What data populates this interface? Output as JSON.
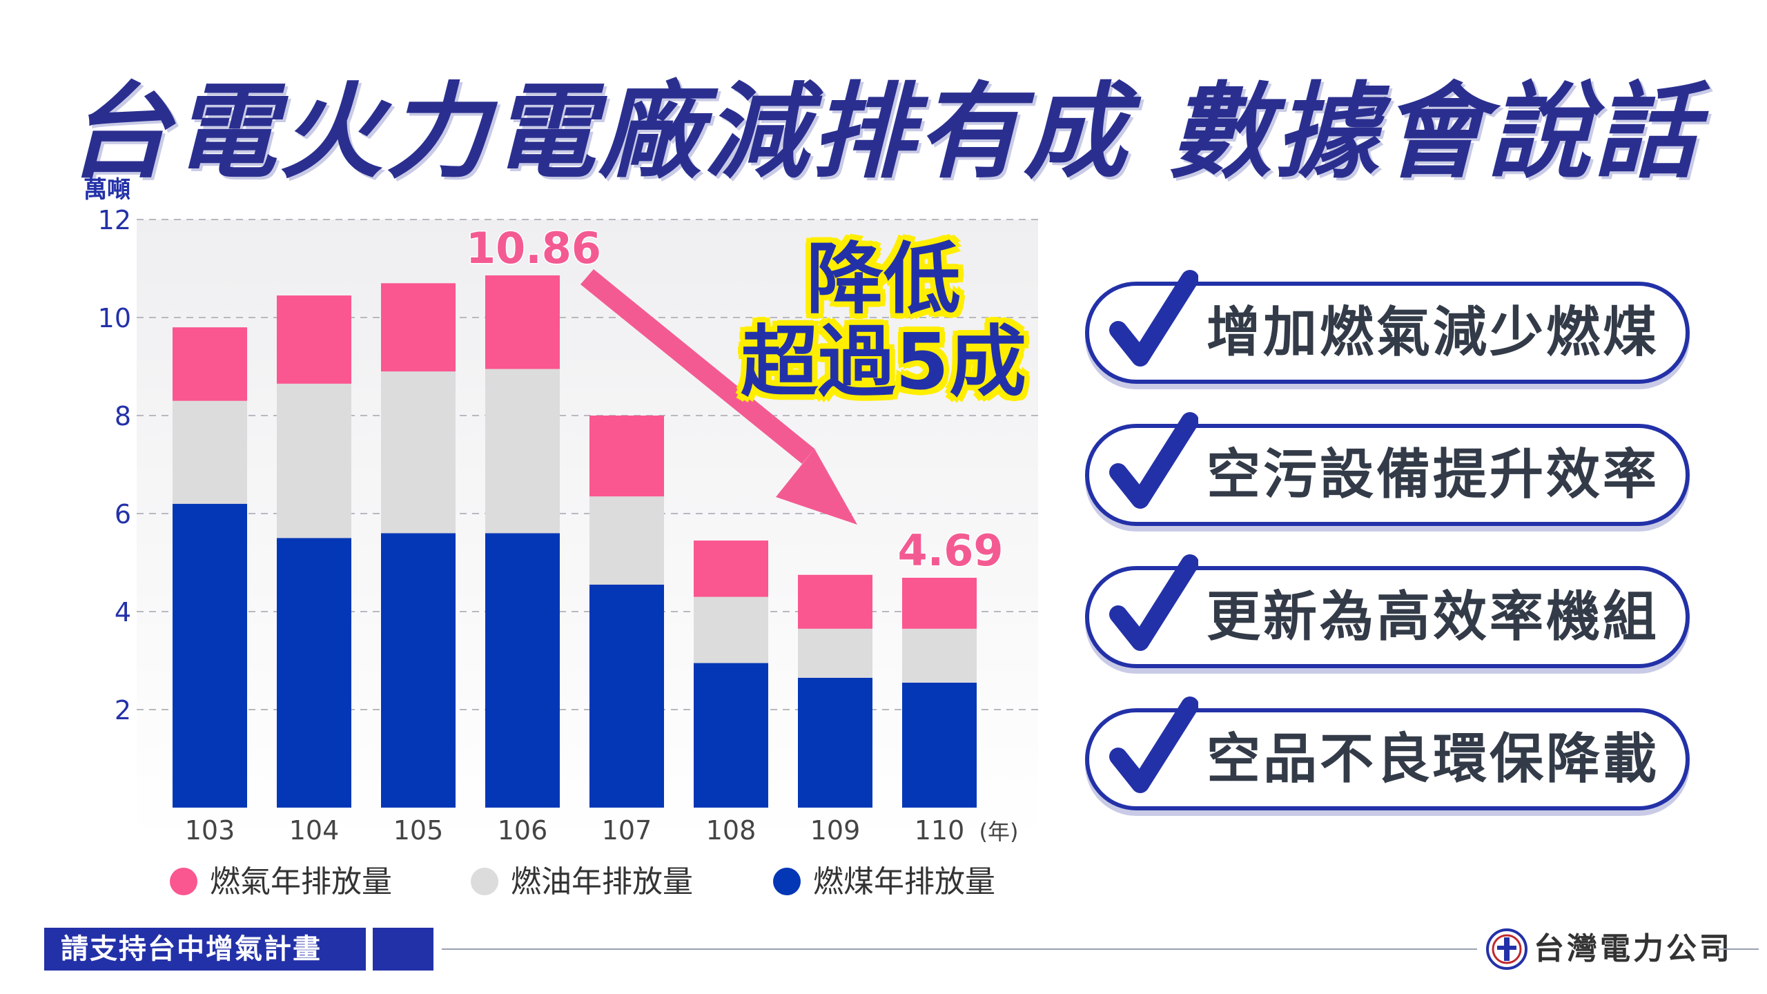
{
  "title": "台電火力電廠減排有成  數據會說話",
  "badge": {
    "line1": "降低",
    "line2": "超過5成"
  },
  "checklist": [
    "增加燃氣減少燃煤",
    "空污設備提升效率",
    "更新為高效率機組",
    "空品不良環保降載"
  ],
  "footer": {
    "tag": "請支持台中增氣計畫",
    "company": "台灣電力公司"
  },
  "colors": {
    "coal": "#0437b6",
    "oil": "#dcdcdc",
    "gas": "#fa5690",
    "accent": "#2331a8",
    "highlight": "#ffee00"
  },
  "chart_data": {
    "type": "bar",
    "stacked": true,
    "unit_label": "萬噸",
    "x_unit_label": "(年)",
    "categories": [
      "103",
      "104",
      "105",
      "106",
      "107",
      "108",
      "109",
      "110"
    ],
    "series": [
      {
        "name": "燃煤年排放量",
        "color": "#0437b6",
        "values": [
          6.2,
          5.5,
          5.6,
          5.6,
          4.55,
          2.95,
          2.65,
          2.55
        ]
      },
      {
        "name": "燃油年排放量",
        "color": "#dcdcdc",
        "values": [
          2.1,
          3.15,
          3.3,
          3.35,
          1.8,
          1.35,
          1.0,
          1.1
        ]
      },
      {
        "name": "燃氣年排放量",
        "color": "#fa5690",
        "values": [
          1.5,
          1.8,
          1.8,
          1.91,
          1.65,
          1.15,
          1.1,
          1.04
        ]
      }
    ],
    "yticks": [
      2,
      4,
      6,
      8,
      10,
      12
    ],
    "ylim": [
      0,
      12
    ],
    "annotations": [
      {
        "category": "106",
        "text": "10.86"
      },
      {
        "category": "110",
        "text": "4.69"
      }
    ],
    "grid": true,
    "legend_position": "bottom"
  }
}
